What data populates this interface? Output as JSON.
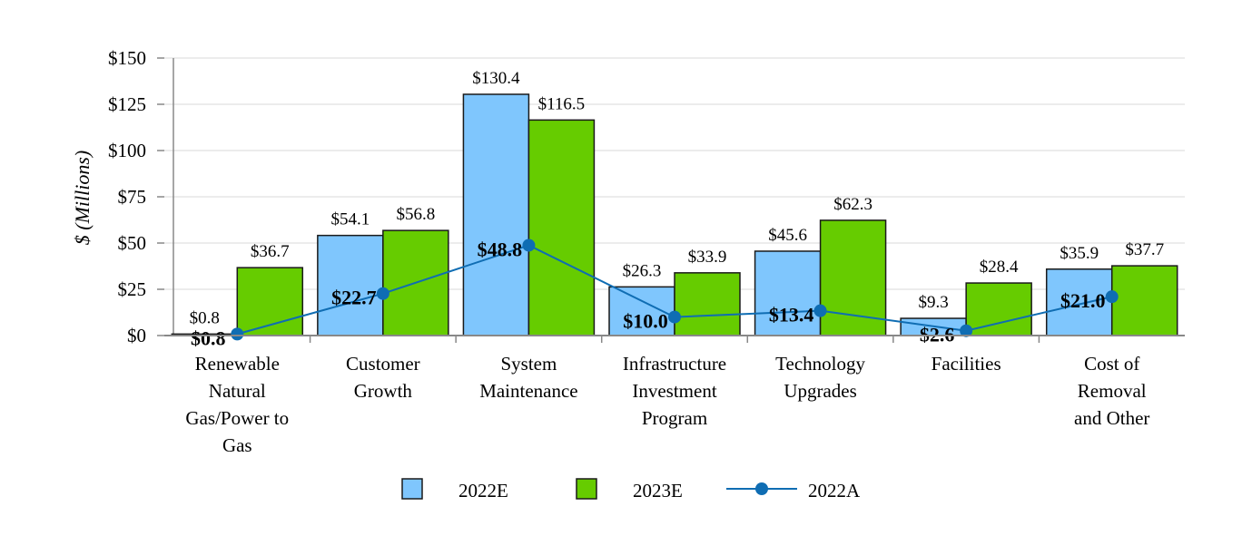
{
  "chart_data": {
    "type": "bar",
    "ylabel": "$ (Millions)",
    "ylim": [
      0,
      150
    ],
    "yticks": [
      0,
      25,
      50,
      75,
      100,
      125,
      150
    ],
    "ytick_labels": [
      "$0",
      "$25",
      "$50",
      "$75",
      "$100",
      "$125",
      "$150"
    ],
    "grid": true,
    "legend_position": "bottom",
    "categories": [
      [
        "Renewable",
        "Natural",
        "Gas/Power to",
        "Gas"
      ],
      [
        "Customer",
        "Growth"
      ],
      [
        "System",
        "Maintenance"
      ],
      [
        "Infrastructure",
        "Investment",
        "Program"
      ],
      [
        "Technology",
        "Upgrades"
      ],
      [
        "Facilities"
      ],
      [
        "Cost of",
        "Removal",
        "and Other"
      ]
    ],
    "series": [
      {
        "name": "2022E",
        "kind": "bar",
        "color": "#7fc6fd",
        "values": [
          0.8,
          54.1,
          130.4,
          26.3,
          45.6,
          9.3,
          35.9
        ],
        "labels": [
          "$0.8",
          "$54.1",
          "$130.4",
          "$26.3",
          "$45.6",
          "$9.3",
          "$35.9"
        ]
      },
      {
        "name": "2023E",
        "kind": "bar",
        "color": "#66cc00",
        "values": [
          36.7,
          56.8,
          116.5,
          33.9,
          62.3,
          28.4,
          37.7
        ],
        "labels": [
          "$36.7",
          "$56.8",
          "$116.5",
          "$33.9",
          "$62.3",
          "$28.4",
          "$37.7"
        ]
      },
      {
        "name": "2022A",
        "kind": "line",
        "color": "#0f6db3",
        "values": [
          0.8,
          22.7,
          48.8,
          10.0,
          13.4,
          2.6,
          21.0
        ],
        "labels": [
          "$0.8",
          "$22.7",
          "$48.8",
          "$10.0",
          "$13.4",
          "$2.6",
          "$21.0"
        ]
      }
    ]
  }
}
